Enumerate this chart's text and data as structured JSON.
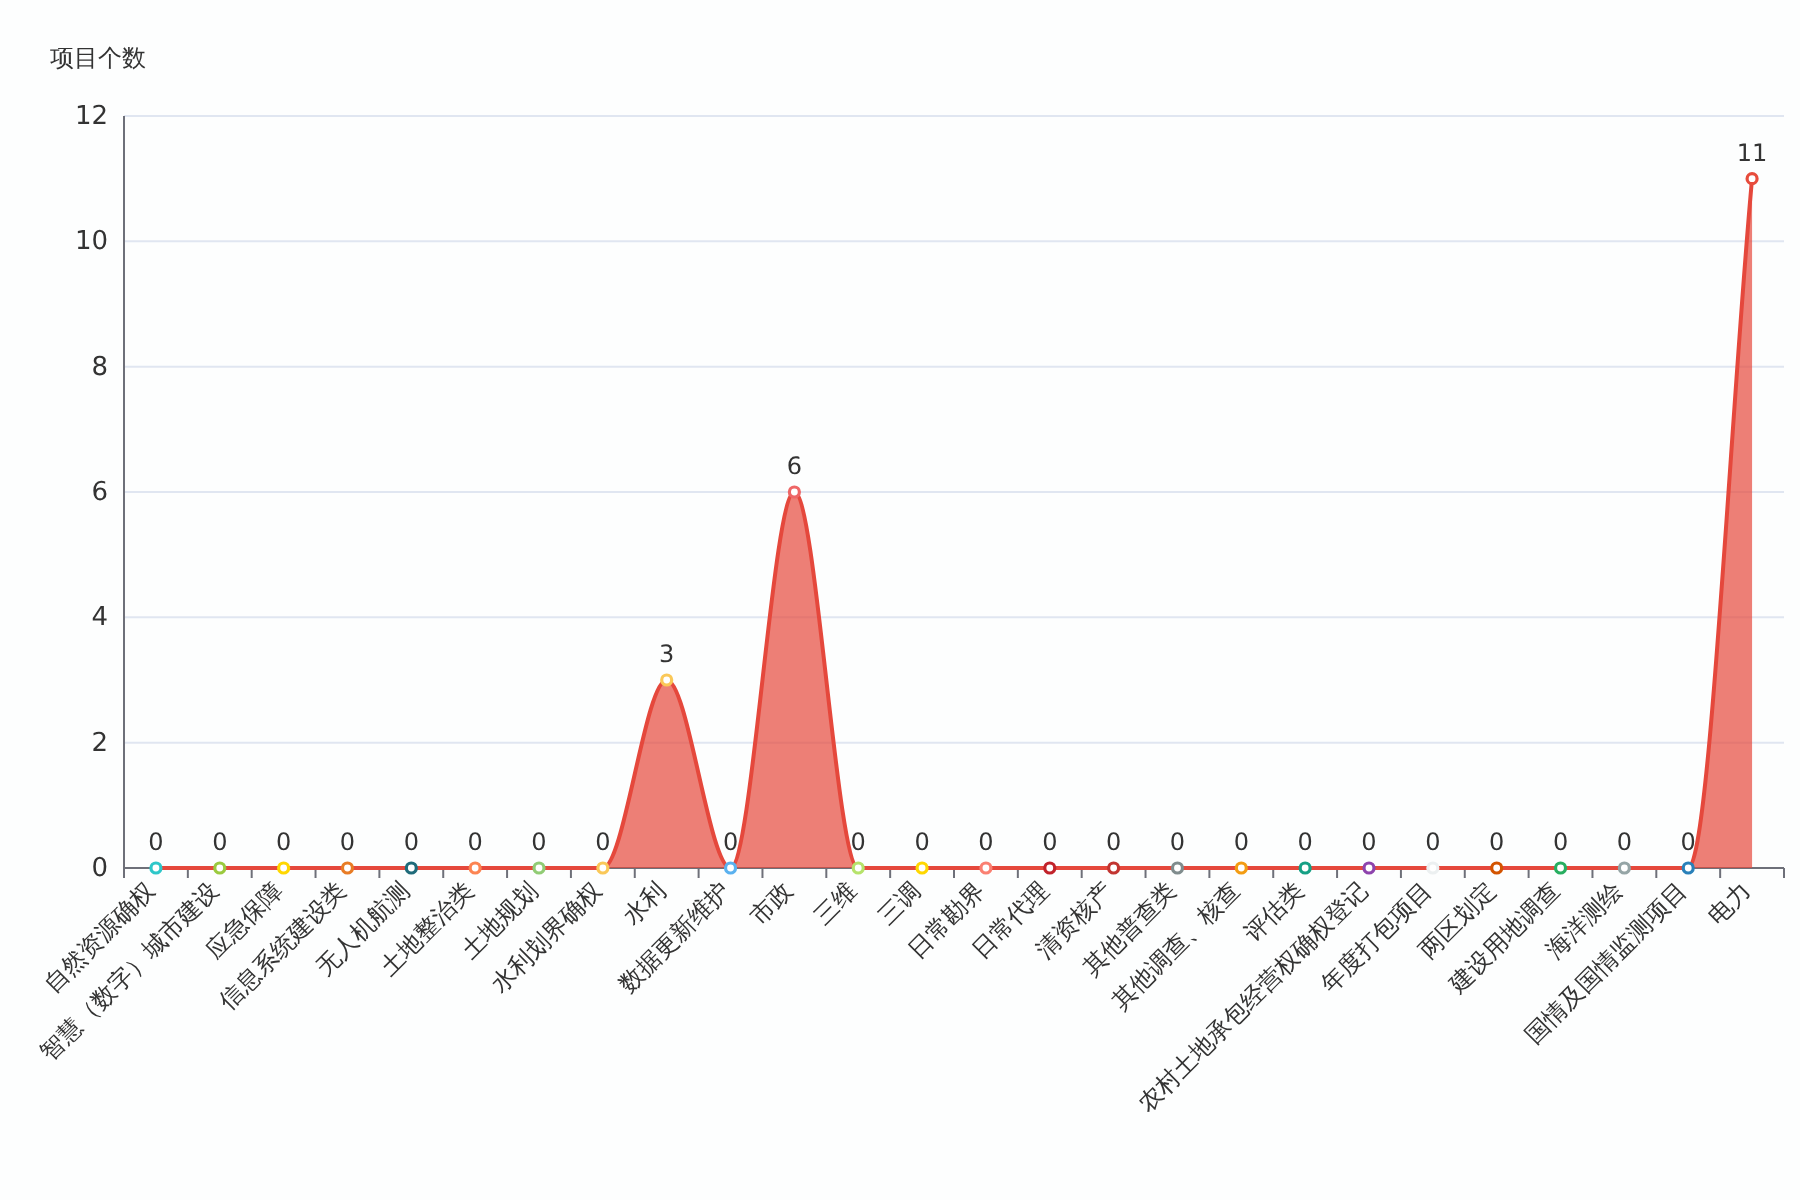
{
  "chart_data": {
    "type": "area",
    "ylabel": "项目个数",
    "categories": [
      "自然资源确权",
      "智慧（数字）城市建设",
      "应急保障",
      "信息系统建设类",
      "无人机航测",
      "土地整治类",
      "土地规划",
      "水利划界确权",
      "水利",
      "数据更新维护",
      "市政",
      "三维",
      "三调",
      "日常勘界",
      "日常代理",
      "清资核产",
      "其他普查类",
      "其他调查、核查",
      "评估类",
      "农村土地承包经营权确权登记",
      "年度打包项目",
      "两区划定",
      "建设用地调查",
      "海洋测绘",
      "国情及国情监测项目",
      "电力"
    ],
    "series": [
      {
        "color": "#e5483c",
        "values": [
          0,
          0,
          0,
          0,
          0,
          0,
          0,
          0,
          3,
          0,
          6,
          0,
          0,
          0,
          0,
          0,
          0,
          0,
          0,
          0,
          0,
          0,
          0,
          0,
          0,
          11
        ],
        "colors": [
          "#2ec7c9",
          "#9bca3f",
          "#ffd700",
          "#e87c25",
          "#1f6b7a",
          "#fc8452",
          "#91cc75",
          "#fac858",
          "#fac858",
          "#5ab1ef",
          "#ee6666",
          "#b6e36b",
          "#ffd700",
          "#fa8072",
          "#c1232b",
          "#c23531",
          "#7f8c8d",
          "#f39c12",
          "#16a085",
          "#8e44ad",
          "#ecf0f1",
          "#d35400",
          "#27ae60",
          "#95a5a6",
          "#2980b9",
          "#e74c3c"
        ]
      }
    ],
    "ylim": [
      0,
      12
    ],
    "yticks": [
      0,
      2,
      4,
      6,
      8,
      10,
      12
    ],
    "grid": "y",
    "data_labels": true,
    "marker": "circle"
  }
}
